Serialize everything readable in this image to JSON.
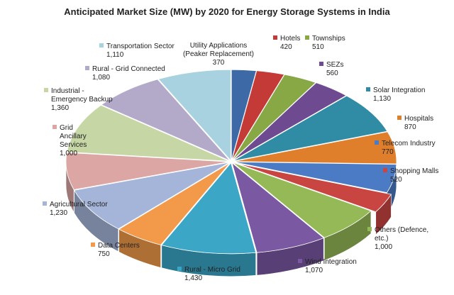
{
  "chart_data": {
    "type": "pie",
    "title": "Anticipated Market Size (MW) by 2020 for Energy Storage Systems in India",
    "slices": [
      {
        "label": [
          "Utility Applications",
          "(Peaker Replacement)"
        ],
        "value": "370",
        "color": "#3d69a6"
      },
      {
        "label": [
          "Hotels"
        ],
        "value": "420",
        "color": "#c33a36"
      },
      {
        "label": [
          "Townships"
        ],
        "value": "510",
        "color": "#88a846"
      },
      {
        "label": [
          "SEZs"
        ],
        "value": "560",
        "color": "#6e4a91"
      },
      {
        "label": [
          "Solar Integration"
        ],
        "value": "1,130",
        "color": "#2f8ca4"
      },
      {
        "label": [
          "Hospitals"
        ],
        "value": "870",
        "color": "#e07f2b"
      },
      {
        "label": [
          "Telecom Industry"
        ],
        "value": "770",
        "color": "#4a7bc4"
      },
      {
        "label": [
          "Shopping Malls"
        ],
        "value": "520",
        "color": "#c94542"
      },
      {
        "label": [
          "Others (Defence,",
          "etc.)"
        ],
        "value": "1,000",
        "color": "#94b956"
      },
      {
        "label": [
          "Wind Integration"
        ],
        "value": "1,070",
        "color": "#7a58a2"
      },
      {
        "label": [
          "Rural - Micro Grid"
        ],
        "value": "1,430",
        "color": "#3ba6c6"
      },
      {
        "label": [
          "Data Centers"
        ],
        "value": "750",
        "color": "#f29a4a"
      },
      {
        "label": [
          "Agricultural Sector"
        ],
        "value": "1,230",
        "color": "#a5b5d9"
      },
      {
        "label": [
          "Grid",
          "Ancillary",
          "Services"
        ],
        "value": "1,000",
        "color": "#dca6a5"
      },
      {
        "label": [
          "Industrial -",
          "Emergency Backup"
        ],
        "value": "1,360",
        "color": "#c6d6a4"
      },
      {
        "label": [
          "Rural - Grid Connected"
        ],
        "value": "1,080",
        "color": "#b3a9c9"
      },
      {
        "label": [
          "Transportation Sector"
        ],
        "value": "1,110",
        "color": "#a9d2e1"
      }
    ]
  }
}
